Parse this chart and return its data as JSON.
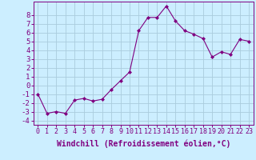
{
  "x": [
    0,
    1,
    2,
    3,
    4,
    5,
    6,
    7,
    8,
    9,
    10,
    11,
    12,
    13,
    14,
    15,
    16,
    17,
    18,
    19,
    20,
    21,
    22,
    23
  ],
  "y": [
    -1,
    -3.2,
    -3.0,
    -3.2,
    -1.7,
    -1.5,
    -1.8,
    -1.6,
    -0.5,
    0.5,
    1.5,
    6.2,
    7.7,
    7.7,
    9.0,
    7.3,
    6.2,
    5.8,
    5.3,
    3.2,
    3.8,
    3.5,
    5.2,
    5.0
  ],
  "line_color": "#800080",
  "marker": "D",
  "marker_size": 2,
  "bg_color": "#cceeff",
  "grid_color": "#aaccdd",
  "axis_color": "#800080",
  "xlabel": "Windchill (Refroidissement éolien,°C)",
  "xlabel_fontsize": 7,
  "tick_fontsize": 6.5,
  "ylim": [
    -4.5,
    9.5
  ],
  "xlim": [
    -0.5,
    23.5
  ],
  "yticks": [
    -4,
    -3,
    -2,
    -1,
    0,
    1,
    2,
    3,
    4,
    5,
    6,
    7,
    8
  ],
  "xticks": [
    0,
    1,
    2,
    3,
    4,
    5,
    6,
    7,
    8,
    9,
    10,
    11,
    12,
    13,
    14,
    15,
    16,
    17,
    18,
    19,
    20,
    21,
    22,
    23
  ]
}
